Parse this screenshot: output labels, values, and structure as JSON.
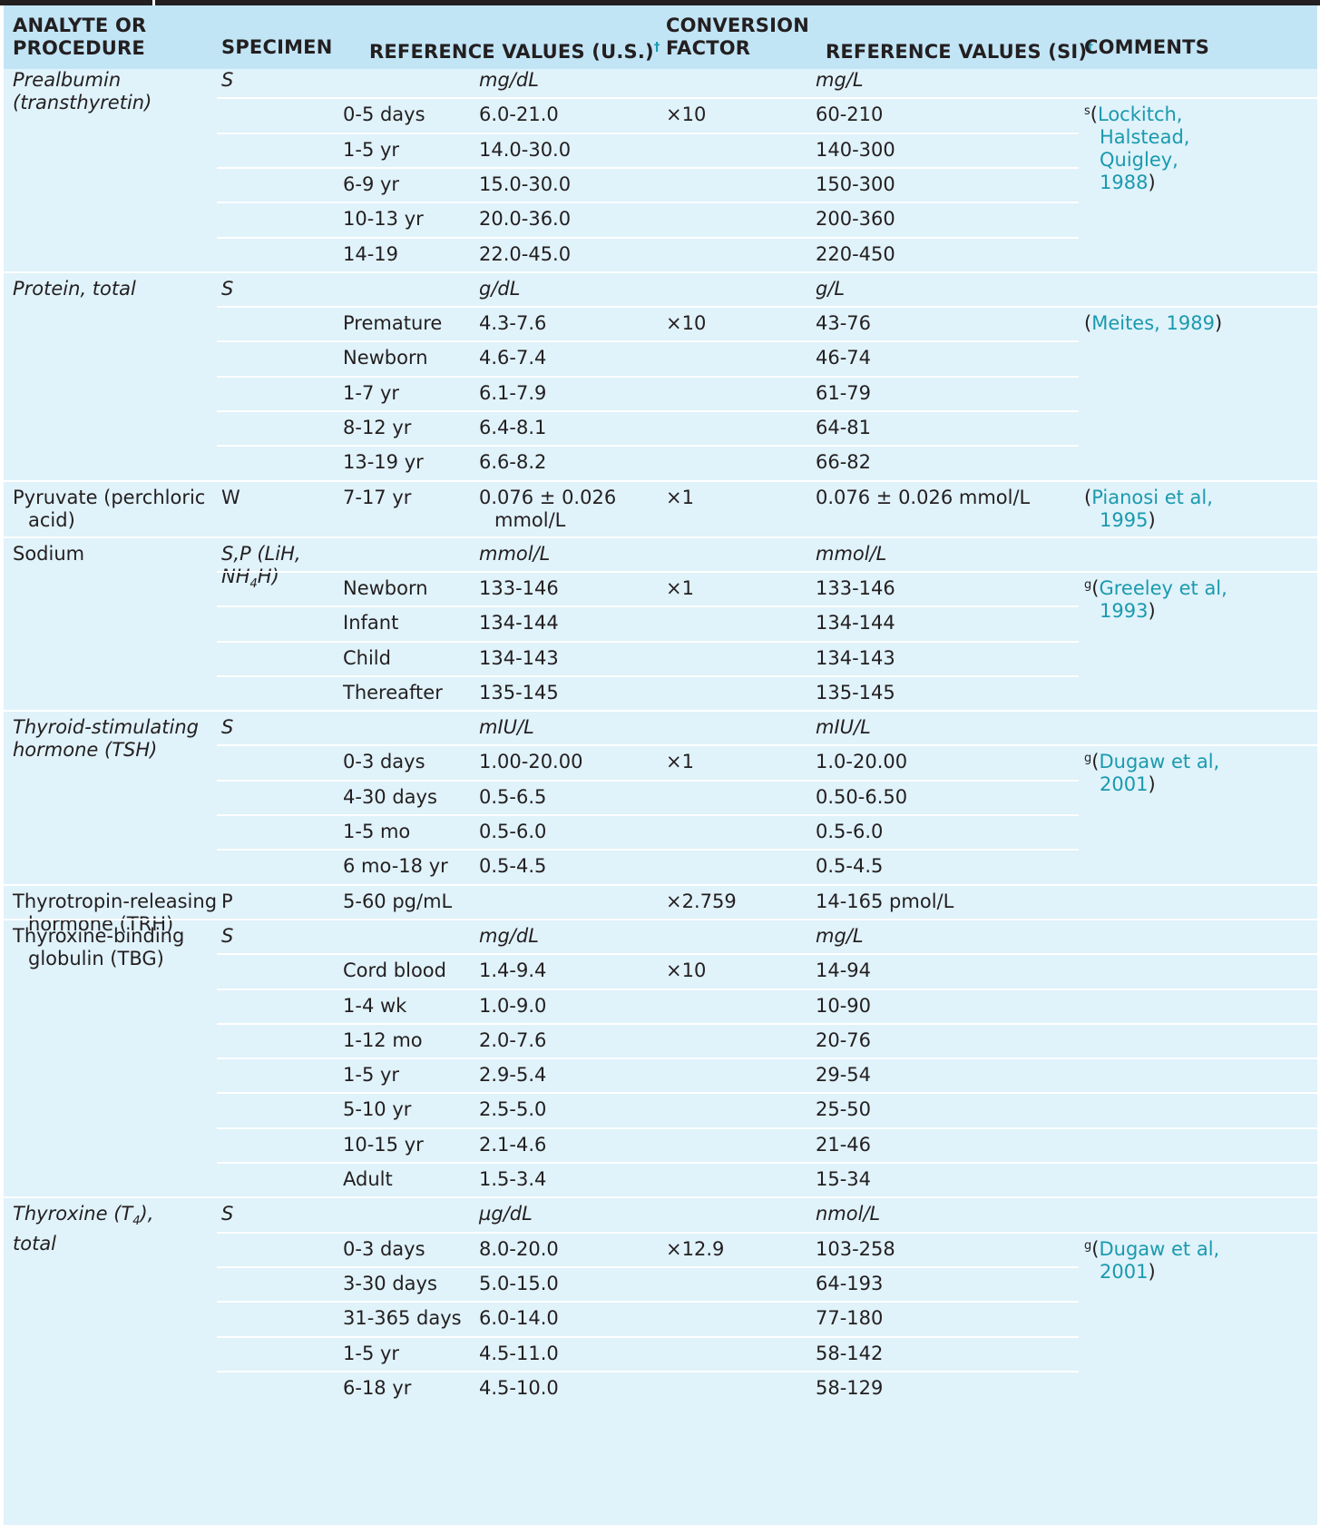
{
  "header": {
    "col_analyte": "ANALYTE OR PROCEDURE",
    "col_specimen": "SPECIMEN",
    "col_ref_us": "REFERENCE VALUES (U.S.)",
    "col_conversion": "CONVERSION FACTOR",
    "col_ref_si": "REFERENCE VALUES (SI)",
    "col_comments": "COMMENTS",
    "dagger": "†"
  },
  "rows": [
    {
      "analyte": "Prealbumin (transthyretin)",
      "analyte_italic": true,
      "specimen": "S",
      "specimen_italic": true,
      "us_unit": "mg/dL",
      "si_unit": "mg/L"
    },
    {
      "group": "0-5 days",
      "us": "6.0-21.0",
      "factor": "×10",
      "si": "60-210",
      "comment_prefix": "s",
      "comment_ref": "Lockitch, Halstead, Quigley, 1988"
    },
    {
      "group": "1-5 yr",
      "us": "14.0-30.0",
      "si": "140-300"
    },
    {
      "group": "6-9 yr",
      "us": "15.0-30.0",
      "si": "150-300"
    },
    {
      "group": "10-13 yr",
      "us": "20.0-36.0",
      "si": "200-360"
    },
    {
      "group": "14-19",
      "us": "22.0-45.0",
      "si": "220-450"
    },
    {
      "analyte": "Protein, total",
      "analyte_italic": true,
      "specimen": "S",
      "specimen_italic": true,
      "us_unit": "g/dL",
      "si_unit": "g/L"
    },
    {
      "group": "Premature",
      "us": "4.3-7.6",
      "factor": "×10",
      "si": "43-76",
      "comment_prefix": "",
      "comment_ref": "Meites, 1989"
    },
    {
      "group": "Newborn",
      "us": "4.6-7.4",
      "si": "46-74"
    },
    {
      "group": "1-7 yr",
      "us": "6.1-7.9",
      "si": "61-79"
    },
    {
      "group": "8-12 yr",
      "us": "6.4-8.1",
      "si": "64-81"
    },
    {
      "group": "13-19 yr",
      "us": "6.6-8.2",
      "si": "66-82"
    },
    {
      "analyte": "Pyruvate (perchloric acid)",
      "specimen": "W",
      "group": "7-17 yr",
      "us": "0.076 ± 0.026 mmol/L",
      "factor": "×1",
      "si": "0.076 ± 0.026 mmol/L",
      "comment_prefix": "",
      "comment_ref": "Pianosi et al, 1995"
    },
    {
      "analyte": "Sodium",
      "specimen": "S,P (LiH, NH4H)",
      "specimen_italic": true,
      "us_unit": "mmol/L",
      "si_unit": "mmol/L"
    },
    {
      "group": "Newborn",
      "us": "133-146",
      "factor": "×1",
      "si": "133-146",
      "comment_prefix": "g",
      "comment_ref": "Greeley et al, 1993"
    },
    {
      "group": "Infant",
      "us": "134-144",
      "si": "134-144"
    },
    {
      "group": "Child",
      "us": "134-143",
      "si": "134-143"
    },
    {
      "group": "Thereafter",
      "us": "135-145",
      "si": "135-145"
    },
    {
      "analyte": "Thyroid-stimulating hormone (TSH)",
      "analyte_italic": true,
      "specimen": "S",
      "specimen_italic": true,
      "us_unit": "mIU/L",
      "si_unit": "mIU/L"
    },
    {
      "group": "0-3 days",
      "us": "1.00-20.00",
      "factor": "×1",
      "si": "1.0-20.00",
      "comment_prefix": "g",
      "comment_ref": "Dugaw et al, 2001"
    },
    {
      "group": "4-30 days",
      "us": "0.5-6.5",
      "si": "0.50-6.50"
    },
    {
      "group": "1-5 mo",
      "us": "0.5-6.0",
      "si": "0.5-6.0"
    },
    {
      "group": "6 mo-18 yr",
      "us": "0.5-4.5",
      "si": "0.5-4.5"
    },
    {
      "analyte": "Thyrotropin-releasing hormone (TRH)",
      "specimen": "P",
      "group": "5-60 pg/mL",
      "factor": "×2.759",
      "si": "14-165 pmol/L"
    },
    {
      "analyte": "Thyroxine-binding globulin (TBG)",
      "specimen": "S",
      "specimen_italic": true,
      "us_unit": "mg/dL",
      "si_unit": "mg/L"
    },
    {
      "group": "Cord blood",
      "us": "1.4-9.4",
      "factor": "×10",
      "si": "14-94"
    },
    {
      "group": "1-4 wk",
      "us": "1.0-9.0",
      "si": "10-90"
    },
    {
      "group": "1-12 mo",
      "us": "2.0-7.6",
      "si": "20-76"
    },
    {
      "group": "1-5 yr",
      "us": "2.9-5.4",
      "si": "29-54"
    },
    {
      "group": "5-10 yr",
      "us": "2.5-5.0",
      "si": "25-50"
    },
    {
      "group": "10-15 yr",
      "us": "2.1-4.6",
      "si": "21-46"
    },
    {
      "group": "Adult",
      "us": "1.5-3.4",
      "si": "15-34"
    },
    {
      "analyte": "Thyroxine (T4), total",
      "analyte_italic": true,
      "specimen": "S",
      "specimen_italic": true,
      "us_unit": "µg/dL",
      "si_unit": "nmol/L"
    },
    {
      "group": "0-3 days",
      "us": "8.0-20.0",
      "factor": "×12.9",
      "si": "103-258",
      "comment_prefix": "g",
      "comment_ref": "Dugaw et al, 2001"
    },
    {
      "group": "3-30 days",
      "us": "5.0-15.0",
      "si": "64-193"
    },
    {
      "group": "31-365 days",
      "us": "6.0-14.0",
      "si": "77-180"
    },
    {
      "group": "1-5 yr",
      "us": "4.5-11.0",
      "si": "58-142"
    },
    {
      "group": "6-18 yr",
      "us": "4.5-10.0",
      "si": "58-129"
    }
  ]
}
